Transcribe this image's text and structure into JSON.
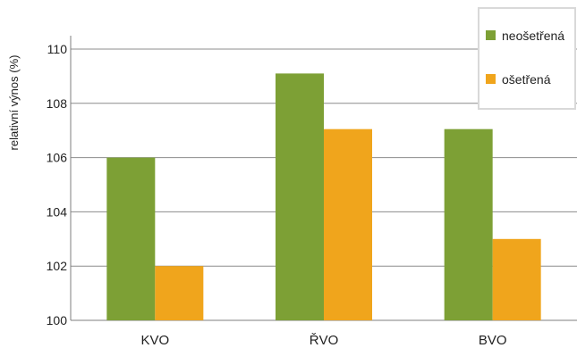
{
  "chart_data": {
    "type": "bar",
    "categories": [
      "KVO",
      "ŘVO",
      "BVO"
    ],
    "series": [
      {
        "name": "neošetřená",
        "color": "#7da035",
        "values": [
          106.0,
          109.1,
          107.05
        ]
      },
      {
        "name": "ošetřená",
        "color": "#f0a51c",
        "values": [
          102.0,
          107.05,
          103.0
        ]
      }
    ],
    "ylabel": "relativní výnos (%)",
    "ylim": [
      100,
      110
    ],
    "yticks": [
      100,
      102,
      104,
      106,
      108,
      110
    ],
    "grid": true,
    "legend": "top-right"
  }
}
